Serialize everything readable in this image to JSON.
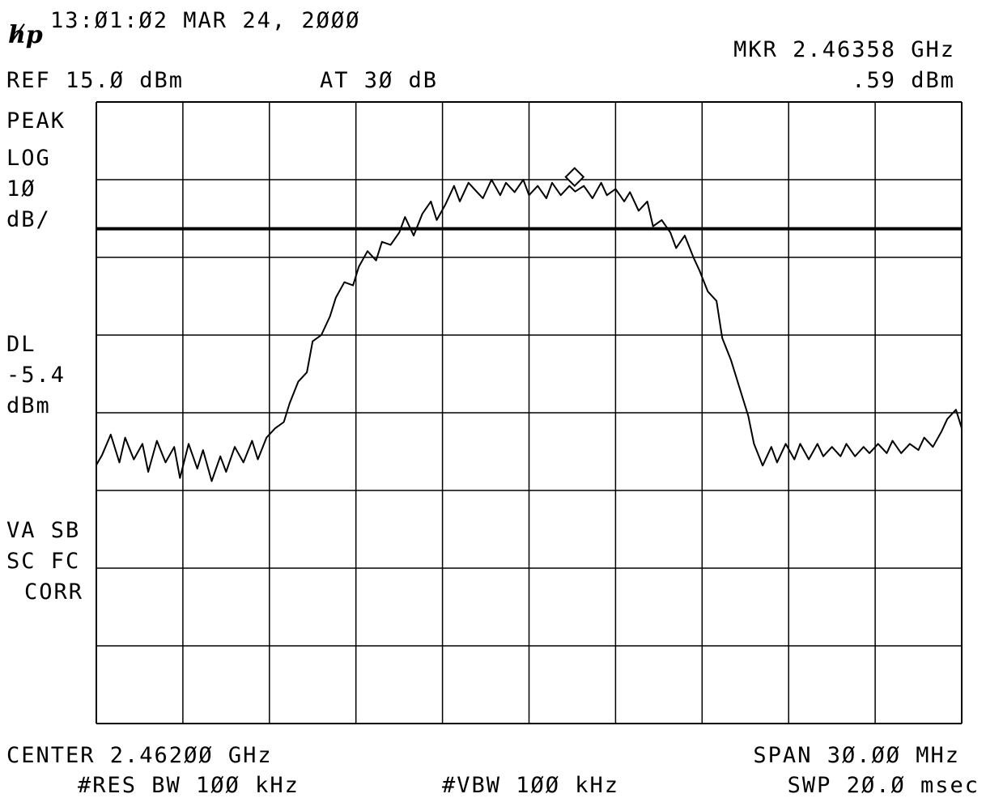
{
  "header": {
    "logo_text": "hp",
    "timestamp": "13:Ø1:Ø2 MAR 24, 2ØØØ",
    "marker_label": "MKR 2.46358 GHz",
    "marker_amplitude": ".59 dBm",
    "reference_level": "REF 15.Ø dBm",
    "attenuation": "AT 3Ø dB"
  },
  "left_annotations": {
    "detector": "PEAK",
    "scale_type": "LOG",
    "scale_value": "1Ø",
    "scale_unit": "dB/",
    "display_line_label": "DL",
    "display_line_value": "-5.4",
    "display_line_unit": "dBm",
    "status_1": "VA SB",
    "status_2": "SC FC",
    "status_3": "CORR"
  },
  "footer": {
    "center": "CENTER 2.462ØØ GHz",
    "span": "SPAN 3Ø.ØØ MHz",
    "rbw": "#RES BW 1ØØ kHz",
    "vbw": "#VBW 1ØØ kHz",
    "sweep": "SWP 2Ø.Ø msec"
  },
  "chart_data": {
    "type": "line",
    "x_unit": "GHz",
    "y_unit": "dBm",
    "xlim": [
      2.447,
      2.477
    ],
    "ylim": [
      -85,
      15
    ],
    "grid": true,
    "grid_divisions": {
      "x": 10,
      "y": 8
    },
    "display_line_dbm": -5.4,
    "marker": {
      "x": 2.46358,
      "y": 0.59
    },
    "series": [
      {
        "values": [
          [
            2.447,
            -43.4
          ],
          [
            2.4472,
            -41.8
          ],
          [
            2.4475,
            -38.5
          ],
          [
            2.4478,
            -43
          ],
          [
            2.448,
            -39
          ],
          [
            2.4483,
            -42.5
          ],
          [
            2.4486,
            -40
          ],
          [
            2.4488,
            -44.5
          ],
          [
            2.4491,
            -39.5
          ],
          [
            2.4494,
            -43
          ],
          [
            2.4497,
            -40.5
          ],
          [
            2.4499,
            -45.5
          ],
          [
            2.4502,
            -40
          ],
          [
            2.4505,
            -44
          ],
          [
            2.4507,
            -41
          ],
          [
            2.451,
            -46
          ],
          [
            2.4513,
            -42
          ],
          [
            2.4515,
            -44.5
          ],
          [
            2.4518,
            -40.5
          ],
          [
            2.4521,
            -43
          ],
          [
            2.4524,
            -39.5
          ],
          [
            2.4526,
            -42.5
          ],
          [
            2.4529,
            -39
          ],
          [
            2.4532,
            -37.5
          ],
          [
            2.4535,
            -36.5
          ],
          [
            2.4537,
            -33.5
          ],
          [
            2.454,
            -30
          ],
          [
            2.4543,
            -28.5
          ],
          [
            2.4545,
            -23.5
          ],
          [
            2.4548,
            -22.5
          ],
          [
            2.4551,
            -19.5
          ],
          [
            2.4553,
            -16.5
          ],
          [
            2.4556,
            -14
          ],
          [
            2.4559,
            -14.5
          ],
          [
            2.4561,
            -11.5
          ],
          [
            2.4564,
            -9
          ],
          [
            2.4567,
            -10.5
          ],
          [
            2.4569,
            -7.5
          ],
          [
            2.4572,
            -8
          ],
          [
            2.4575,
            -6
          ],
          [
            2.4577,
            -3.5
          ],
          [
            2.458,
            -6.5
          ],
          [
            2.4583,
            -3
          ],
          [
            2.4586,
            -1
          ],
          [
            2.4588,
            -4
          ],
          [
            2.4591,
            -1.5
          ],
          [
            2.4594,
            1.5
          ],
          [
            2.4596,
            -1
          ],
          [
            2.4599,
            2
          ],
          [
            2.4602,
            0.5
          ],
          [
            2.4604,
            -0.5
          ],
          [
            2.4607,
            2.5
          ],
          [
            2.461,
            0
          ],
          [
            2.4612,
            2
          ],
          [
            2.4615,
            0.5
          ],
          [
            2.4618,
            2.5
          ],
          [
            2.462,
            0
          ],
          [
            2.4623,
            1.5
          ],
          [
            2.4626,
            -0.5
          ],
          [
            2.4628,
            2
          ],
          [
            2.4631,
            0
          ],
          [
            2.4634,
            1.5
          ],
          [
            2.4636,
            0.59
          ],
          [
            2.4639,
            1.5
          ],
          [
            2.4642,
            -0.5
          ],
          [
            2.4645,
            2
          ],
          [
            2.4647,
            0
          ],
          [
            2.465,
            1
          ],
          [
            2.4653,
            -1
          ],
          [
            2.4655,
            0.5
          ],
          [
            2.4658,
            -2.5
          ],
          [
            2.4661,
            -1
          ],
          [
            2.4663,
            -5
          ],
          [
            2.4666,
            -4
          ],
          [
            2.4669,
            -6
          ],
          [
            2.4671,
            -8.5
          ],
          [
            2.4674,
            -6.5
          ],
          [
            2.4677,
            -10
          ],
          [
            2.4679,
            -12
          ],
          [
            2.4682,
            -15.5
          ],
          [
            2.4685,
            -17
          ],
          [
            2.4687,
            -23
          ],
          [
            2.469,
            -26.5
          ],
          [
            2.4693,
            -31
          ],
          [
            2.4696,
            -35.5
          ],
          [
            2.4698,
            -40
          ],
          [
            2.4701,
            -43.5
          ],
          [
            2.4704,
            -40.5
          ],
          [
            2.4706,
            -43
          ],
          [
            2.4709,
            -40
          ],
          [
            2.4712,
            -42.5
          ],
          [
            2.4714,
            -40
          ],
          [
            2.4717,
            -42.5
          ],
          [
            2.472,
            -40
          ],
          [
            2.4722,
            -42
          ],
          [
            2.4725,
            -40.5
          ],
          [
            2.4728,
            -42
          ],
          [
            2.473,
            -40
          ],
          [
            2.4733,
            -42
          ],
          [
            2.4736,
            -40.5
          ],
          [
            2.4738,
            -41.5
          ],
          [
            2.4741,
            -40
          ],
          [
            2.4744,
            -41.5
          ],
          [
            2.4746,
            -39.5
          ],
          [
            2.4749,
            -41.5
          ],
          [
            2.4752,
            -40
          ],
          [
            2.4755,
            -41
          ],
          [
            2.4757,
            -39
          ],
          [
            2.476,
            -40.5
          ],
          [
            2.4763,
            -38
          ],
          [
            2.4765,
            -36
          ],
          [
            2.4768,
            -34.5
          ],
          [
            2.477,
            -37.5
          ]
        ]
      }
    ]
  }
}
